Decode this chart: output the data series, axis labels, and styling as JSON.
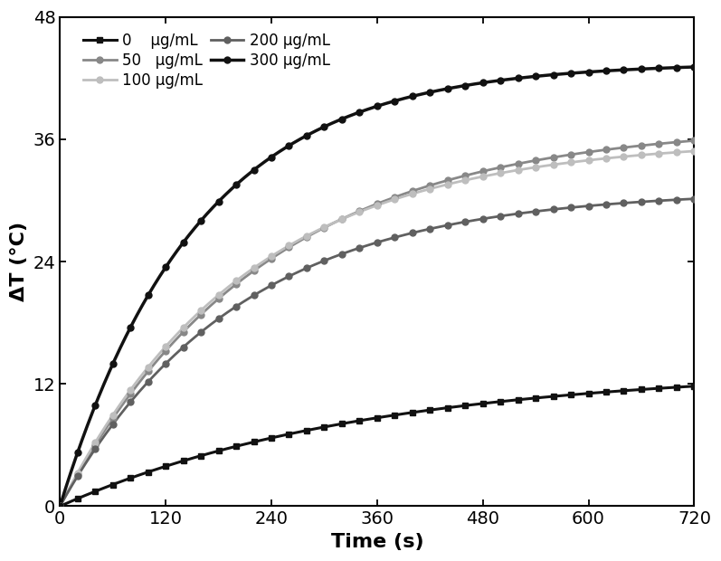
{
  "title": "",
  "xlabel": "Time (s)",
  "ylabel": "ΔT (°C)",
  "xlim": [
    0,
    720
  ],
  "ylim": [
    0,
    48
  ],
  "xticks": [
    0,
    120,
    240,
    360,
    480,
    600,
    720
  ],
  "yticks": [
    0,
    12,
    24,
    36,
    48
  ],
  "series": [
    {
      "label": "0    μg/mL",
      "color": "#111111",
      "marker": "s",
      "A": 13.5,
      "tau": 350,
      "lw": 2.2,
      "ms": 5
    },
    {
      "label": "50   μg/mL",
      "color": "#888888",
      "marker": "o",
      "A": 37.5,
      "tau": 230,
      "lw": 2.0,
      "ms": 5
    },
    {
      "label": "100 μg/mL",
      "color": "#bebebe",
      "marker": "o",
      "A": 36.0,
      "tau": 210,
      "lw": 2.0,
      "ms": 5
    },
    {
      "label": "200 μg/mL",
      "color": "#606060",
      "marker": "o",
      "A": 31.0,
      "tau": 200,
      "lw": 2.0,
      "ms": 5
    },
    {
      "label": "300 μg/mL",
      "color": "#111111",
      "marker": "o",
      "A": 43.5,
      "tau": 155,
      "lw": 2.5,
      "ms": 5
    }
  ],
  "marker_interval": 20,
  "background_color": "#ffffff",
  "legend_fontsize": 12,
  "axis_label_fontsize": 16,
  "tick_fontsize": 14
}
